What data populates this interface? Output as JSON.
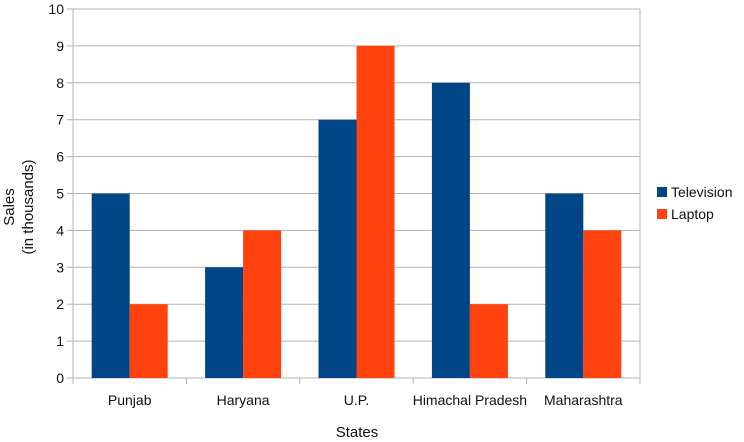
{
  "chart_data": {
    "type": "bar",
    "categories": [
      "Punjab",
      "Haryana",
      "U.P.",
      "Himachal Pradesh",
      "Maharashtra"
    ],
    "series": [
      {
        "name": "Television",
        "values": [
          5,
          3,
          7,
          8,
          5
        ],
        "color": "#004586"
      },
      {
        "name": "Laptop",
        "values": [
          2,
          4,
          9,
          2,
          4
        ],
        "color": "#ff420e"
      }
    ],
    "xlabel": "States",
    "ylabel_line1": "Sales",
    "ylabel_line2": "(in thousands)",
    "ylim": [
      0,
      10
    ],
    "yticks": [
      0,
      1,
      2,
      3,
      4,
      5,
      6,
      7,
      8,
      9,
      10
    ],
    "grid": "horizontal",
    "legend_position": "right",
    "gridline_color": "#b3b3b3"
  }
}
